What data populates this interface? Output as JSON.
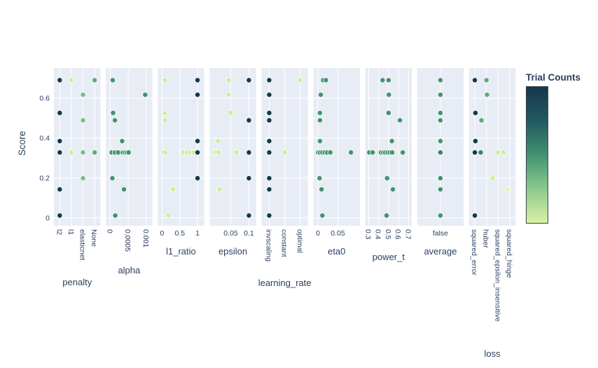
{
  "chart_data": {
    "type": "scatter",
    "title": "",
    "ylabel": "Score",
    "ylim": [
      -0.039,
      0.751
    ],
    "grid": true,
    "legend_position": "none",
    "yticks": [
      {
        "value": 0,
        "label": "0"
      },
      {
        "value": 0.2,
        "label": "0.2"
      },
      {
        "value": 0.4,
        "label": "0.4"
      },
      {
        "value": 0.6,
        "label": "0.6"
      }
    ],
    "plot_bg": "#e7ecf5",
    "font_color": "#2a3f5f",
    "grid_color": "#ffffff",
    "palette": {
      "dark": "#14384c",
      "green": "#41936f",
      "green2": "#58ad7b",
      "greendk": "#35826a",
      "lgreen": "#74c089",
      "light": "#cfec9f",
      "paler": "#e3f4ae"
    },
    "colorbar": {
      "title": "Trial Counts",
      "stops": [
        "#d9f1a6",
        "#8cc98d",
        "#41936f",
        "#225962",
        "#15374b"
      ]
    },
    "subplots": [
      {
        "param": "penalty",
        "axis_kind": "category",
        "rotate_ticks": true,
        "title_offset": 85,
        "categories": [
          "l2",
          "l1",
          "elasticnet",
          "None"
        ],
        "default_color": "dark",
        "points": [
          [
            0,
            0.69,
            "dark"
          ],
          [
            1,
            0.69,
            "light"
          ],
          [
            3,
            0.69,
            "green2"
          ],
          [
            2,
            0.617,
            "lgreen"
          ],
          [
            0,
            0.526,
            "dark"
          ],
          [
            2,
            0.489,
            "lgreen"
          ],
          [
            0,
            0.385,
            "dark"
          ],
          [
            0,
            0.328,
            "dark"
          ],
          [
            1,
            0.328,
            "light"
          ],
          [
            2,
            0.328,
            "lgreen"
          ],
          [
            3,
            0.328,
            "green2"
          ],
          [
            2,
            0.199,
            "lgreen"
          ],
          [
            0,
            0.143,
            "dark"
          ],
          [
            0,
            0.012,
            "dark"
          ]
        ]
      },
      {
        "param": "alpha",
        "axis_kind": "linear",
        "rotate_ticks": true,
        "title_offset": 68,
        "range": [
          -0.000122,
          0.001168
        ],
        "ticks": [
          0,
          0.0005,
          0.001
        ],
        "tick_labels": [
          "0",
          "0.0005",
          "0.001"
        ],
        "default_color": "green",
        "points": [
          [
            7e-05,
            0.69
          ],
          [
            0.00097,
            0.617
          ],
          [
            8e-05,
            0.526
          ],
          [
            0.00013,
            0.489
          ],
          [
            0.00033,
            0.385
          ],
          [
            4e-05,
            0.328
          ],
          [
            0.00013,
            0.328
          ],
          [
            0.00022,
            0.328
          ],
          [
            0.00035,
            0.328
          ],
          [
            0.00041,
            0.328
          ],
          [
            0.00046,
            0.328
          ],
          [
            0.00051,
            0.328
          ],
          [
            6e-05,
            0.199
          ],
          [
            0.00038,
            0.143
          ],
          [
            0.00014,
            0.012
          ]
        ]
      },
      {
        "param": "l1_ratio",
        "axis_kind": "linear",
        "rotate_ticks": false,
        "title_offset": 41,
        "range": [
          -0.124,
          1.19
        ],
        "ticks": [
          0,
          0.5,
          1
        ],
        "tick_labels": [
          "0",
          "0.5",
          "1"
        ],
        "default_color": "light",
        "points": [
          [
            0.08,
            0.69,
            "light"
          ],
          [
            1,
            0.69,
            "dark"
          ],
          [
            1,
            0.617,
            "dark"
          ],
          [
            0.08,
            0.526,
            "light"
          ],
          [
            0.08,
            0.489,
            "light"
          ],
          [
            1,
            0.385,
            "dark"
          ],
          [
            0.04,
            0.328,
            "light"
          ],
          [
            0.09,
            0.328,
            "light"
          ],
          [
            0.6,
            0.328,
            "light"
          ],
          [
            0.7,
            0.328,
            "light"
          ],
          [
            0.79,
            0.328,
            "light"
          ],
          [
            0.88,
            0.328,
            "light"
          ],
          [
            1,
            0.328,
            "dark"
          ],
          [
            1,
            0.199,
            "dark"
          ],
          [
            0.31,
            0.143,
            "light"
          ],
          [
            0.18,
            0.012,
            "light"
          ]
        ]
      },
      {
        "param": "epsilon",
        "axis_kind": "linear",
        "rotate_ticks": false,
        "title_offset": 41,
        "range": [
          -0.0082,
          0.12
        ],
        "ticks": [
          0.05,
          0.1
        ],
        "tick_labels": [
          "0.05",
          "0.1"
        ],
        "default_color": "light",
        "points": [
          [
            0.044,
            0.69,
            "light"
          ],
          [
            0.1,
            0.69,
            "dark"
          ],
          [
            0.044,
            0.617,
            "light"
          ],
          [
            0.049,
            0.526,
            "light"
          ],
          [
            0.1,
            0.489,
            "dark"
          ],
          [
            0.015,
            0.385,
            "light"
          ],
          [
            0.005,
            0.328,
            "light"
          ],
          [
            0.01,
            0.328,
            "light"
          ],
          [
            0.0165,
            0.328,
            "light"
          ],
          [
            0.066,
            0.328,
            "light"
          ],
          [
            0.1,
            0.328,
            "dark"
          ],
          [
            0.1,
            0.199,
            "dark"
          ],
          [
            0.019,
            0.143,
            "light"
          ],
          [
            0.1,
            0.012,
            "dark"
          ]
        ]
      },
      {
        "param": "learning_rate",
        "axis_kind": "category",
        "rotate_ticks": true,
        "title_offset": 86,
        "categories": [
          "invscaling",
          "constant",
          "optimal"
        ],
        "default_color": "dark",
        "points": [
          [
            0,
            0.69,
            "dark"
          ],
          [
            0,
            0.617,
            "dark"
          ],
          [
            0,
            0.526,
            "dark"
          ],
          [
            0,
            0.489,
            "dark"
          ],
          [
            0,
            0.385,
            "dark"
          ],
          [
            0,
            0.328,
            "dark"
          ],
          [
            0,
            0.199,
            "dark"
          ],
          [
            0,
            0.143,
            "dark"
          ],
          [
            0,
            0.012,
            "dark"
          ],
          [
            1,
            0.328,
            "light"
          ],
          [
            2,
            0.69,
            "light"
          ]
        ]
      },
      {
        "param": "eta0",
        "axis_kind": "linear",
        "rotate_ticks": false,
        "title_offset": 41,
        "range": [
          -0.0116,
          0.1055
        ],
        "ticks": [
          0,
          0.05
        ],
        "tick_labels": [
          "0",
          "0.05"
        ],
        "default_color": "green",
        "points": [
          [
            0.013,
            0.69
          ],
          [
            0.02,
            0.69
          ],
          [
            0.007,
            0.617
          ],
          [
            0.005,
            0.526
          ],
          [
            0.005,
            0.489
          ],
          [
            0.005,
            0.385
          ],
          [
            0.0005,
            0.328
          ],
          [
            0.005,
            0.328
          ],
          [
            0.011,
            0.328
          ],
          [
            0.017,
            0.328
          ],
          [
            0.023,
            0.328
          ],
          [
            0.031,
            0.328
          ],
          [
            0.083,
            0.328
          ],
          [
            0.004,
            0.199
          ],
          [
            0.009,
            0.143
          ],
          [
            0.011,
            0.012
          ]
        ]
      },
      {
        "param": "power_t",
        "axis_kind": "linear",
        "rotate_ticks": true,
        "title_offset": 49,
        "range": [
          0.266,
          0.733
        ],
        "ticks": [
          0.3,
          0.4,
          0.5,
          0.6,
          0.7
        ],
        "tick_labels": [
          "0.3",
          "0.4",
          "0.5",
          "0.6",
          "0.7"
        ],
        "default_color": "green",
        "points": [
          [
            0.44,
            0.69
          ],
          [
            0.5,
            0.69
          ],
          [
            0.503,
            0.617
          ],
          [
            0.5,
            0.526
          ],
          [
            0.614,
            0.489
          ],
          [
            0.533,
            0.385
          ],
          [
            0.306,
            0.328
          ],
          [
            0.34,
            0.328
          ],
          [
            0.423,
            0.328
          ],
          [
            0.446,
            0.328
          ],
          [
            0.467,
            0.328
          ],
          [
            0.49,
            0.328
          ],
          [
            0.513,
            0.328
          ],
          [
            0.536,
            0.328
          ],
          [
            0.642,
            0.328
          ],
          [
            0.485,
            0.199
          ],
          [
            0.543,
            0.143
          ],
          [
            0.48,
            0.012
          ]
        ]
      },
      {
        "param": "average",
        "axis_kind": "category",
        "rotate_ticks": false,
        "title_offset": 41,
        "categories": [
          "false"
        ],
        "default_color": "green",
        "points": [
          [
            0,
            0.69
          ],
          [
            0,
            0.617
          ],
          [
            0,
            0.526
          ],
          [
            0,
            0.489
          ],
          [
            0,
            0.385
          ],
          [
            0,
            0.328,
            "greendk"
          ],
          [
            0,
            0.199
          ],
          [
            0,
            0.143
          ],
          [
            0,
            0.012
          ]
        ]
      },
      {
        "param": "loss",
        "axis_kind": "category",
        "rotate_ticks": true,
        "title_offset": 187,
        "categories": [
          "squared_error",
          "huber",
          "squared_epsilon_insensitive",
          "squared_hinge"
        ],
        "default_color": "dark",
        "points": [
          [
            0,
            0.69,
            "dark"
          ],
          [
            1,
            0.69,
            "green2"
          ],
          [
            1.05,
            0.617,
            "green2"
          ],
          [
            0.05,
            0.526,
            "dark"
          ],
          [
            0.57,
            0.489,
            "green2"
          ],
          [
            0.05,
            0.385,
            "dark"
          ],
          [
            0,
            0.328,
            "dark"
          ],
          [
            0.5,
            0.328,
            "greendk"
          ],
          [
            2,
            0.328,
            "light"
          ],
          [
            2.47,
            0.328,
            "light"
          ],
          [
            1.52,
            0.199,
            "light"
          ],
          [
            2.82,
            0.143,
            "paler"
          ],
          [
            0,
            0.012,
            "dark"
          ]
        ]
      }
    ]
  }
}
